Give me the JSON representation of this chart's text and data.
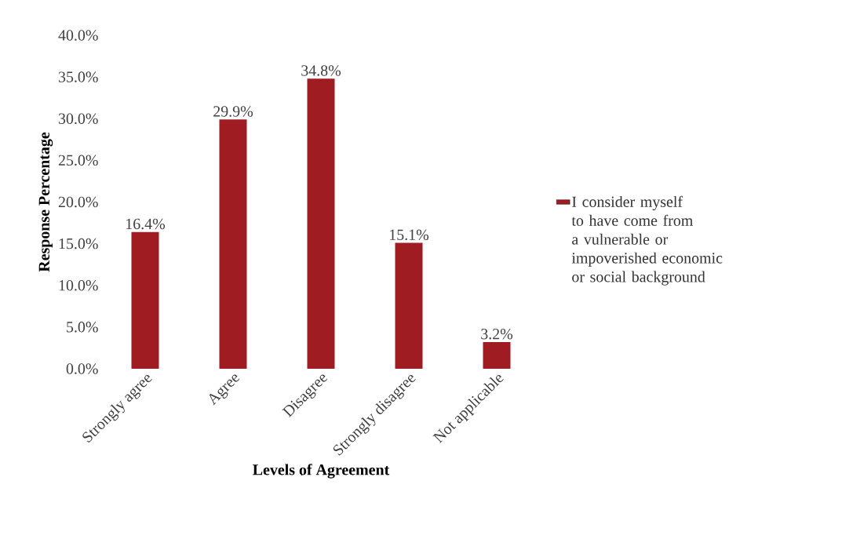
{
  "chart_data": {
    "type": "bar",
    "xlabel": "Levels of Agreement",
    "ylabel": "Response Percentage",
    "categories": [
      "Strongly agree",
      "Agree",
      "Disagree",
      "Strongly disagree",
      "Not applicable"
    ],
    "series": [
      {
        "name": "I consider myself to have come from a vulnerable or impoverished economic or social background",
        "color": "#9e1c22",
        "values": [
          16.4,
          29.9,
          34.8,
          15.1,
          3.2
        ],
        "value_labels": [
          "16.4%",
          "29.9%",
          "34.8%",
          "15.1%",
          "3.2%"
        ]
      }
    ],
    "ylim": [
      0,
      40
    ],
    "yticks": [
      {
        "value": 0,
        "label": "0.0%"
      },
      {
        "value": 5,
        "label": "5.0%"
      },
      {
        "value": 10,
        "label": "10.0%"
      },
      {
        "value": 15,
        "label": "15.0%"
      },
      {
        "value": 20,
        "label": "20.0%"
      },
      {
        "value": 25,
        "label": "25.0%"
      },
      {
        "value": 30,
        "label": "30.0%"
      },
      {
        "value": 35,
        "label": "35.0%"
      },
      {
        "value": 40,
        "label": "40.0%"
      }
    ],
    "grid": false,
    "legend": "right"
  }
}
